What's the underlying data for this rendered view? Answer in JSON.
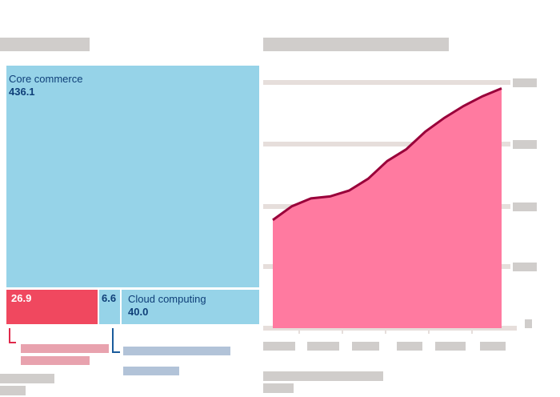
{
  "treemap": {
    "segments": [
      {
        "id": "core",
        "name": "Core commerce",
        "value": "436.1",
        "color": "#96d3e8"
      },
      {
        "id": "digital",
        "name": "",
        "value": "26.9",
        "color": "#f0485f"
      },
      {
        "id": "innovation",
        "name": "",
        "value": "6.6",
        "color": "#96d3e8"
      },
      {
        "id": "cloud",
        "name": "Cloud computing",
        "value": "40.0",
        "color": "#96d3e8"
      }
    ]
  },
  "chart_data": {
    "type": "area",
    "series": [
      {
        "values": [
          0.55,
          0.62,
          0.66,
          0.67,
          0.7,
          0.76,
          0.85,
          0.91,
          1.0,
          1.07,
          1.13,
          1.18,
          1.22
        ]
      }
    ],
    "fill_color": "#ff7aa0",
    "line_color": "#99003a",
    "grid": true,
    "gridline_count": 5,
    "x_tick_count": 6
  }
}
